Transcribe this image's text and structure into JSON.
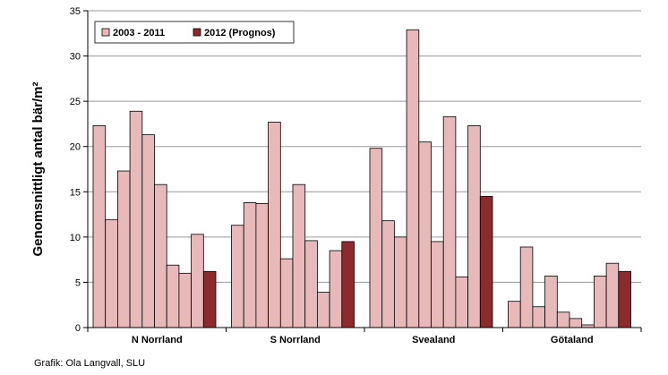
{
  "chart_data": {
    "type": "bar",
    "categories": [
      "N Norrland",
      "S Norrland",
      "Svealand",
      "Götaland"
    ],
    "series": [
      {
        "name": "2003 - 2011",
        "color": "#e8b9b9",
        "values": [
          [
            22.3,
            11.9,
            17.3,
            23.9,
            21.3,
            15.8,
            6.9,
            6.0,
            10.3
          ],
          [
            11.3,
            13.8,
            13.7,
            22.7,
            7.6,
            15.8,
            9.6,
            3.9,
            8.5
          ],
          [
            19.8,
            11.8,
            10.0,
            32.9,
            20.5,
            9.5,
            23.3,
            5.6,
            22.3
          ],
          [
            2.9,
            8.9,
            2.3,
            5.7,
            1.7,
            1.0,
            0.3,
            5.7,
            7.1
          ]
        ]
      },
      {
        "name": "2012 (Prognos)",
        "color": "#8b2b2e",
        "values": [
          6.2,
          9.5,
          14.5,
          6.2
        ]
      }
    ],
    "ylabel": "Genomsnittligt antal bär/m²",
    "ylim": [
      0,
      35
    ],
    "yticks": [
      0,
      5,
      10,
      15,
      20,
      25,
      30,
      35
    ],
    "grid": true,
    "legend": "top-left",
    "credit": "Grafik: Ola Langvall, SLU"
  }
}
